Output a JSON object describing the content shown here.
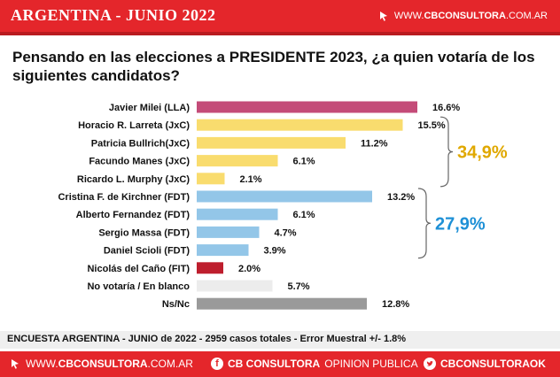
{
  "header": {
    "title": "ARGENTINA - JUNIO 2022",
    "site_prefix": "WWW.",
    "site_main": "CBCONSULTORA",
    "site_suffix": ".COM.AR"
  },
  "question": "Pensando en las elecciones a PRESIDENTE 2023, ¿a quien votaría de los siguientes candidatos?",
  "chart_data": {
    "type": "bar",
    "orientation": "horizontal",
    "categories": [
      "Javier Milei (LLA)",
      "Horacio R. Larreta (JxC)",
      "Patricia Bullrich(JxC)",
      "Facundo Manes (JxC)",
      "Ricardo L. Murphy (JxC)",
      "Cristina F. de Kirchner (FDT)",
      "Alberto Fernandez (FDT)",
      "Sergio Massa (FDT)",
      "Daniel Scioli (FDT)",
      "Nicolás del Caño (FIT)",
      "No votaría / En blanco",
      "Ns/Nc"
    ],
    "values": [
      16.6,
      15.5,
      11.2,
      6.1,
      2.1,
      13.2,
      6.1,
      4.7,
      3.9,
      2.0,
      5.7,
      12.8
    ],
    "value_labels": [
      "16.6%",
      "15.5%",
      "11.2%",
      "6.1%",
      "2.1%",
      "13.2%",
      "6.1%",
      "4.7%",
      "3.9%",
      "2.0%",
      "5.7%",
      "12.8%"
    ],
    "colors": [
      "#c44b78",
      "#f9dc6e",
      "#f9dc6e",
      "#f9dc6e",
      "#f9dc6e",
      "#93c6e8",
      "#93c6e8",
      "#93c6e8",
      "#93c6e8",
      "#be1e2d",
      "#ececec",
      "#9a9a9a"
    ],
    "xlim": [
      0,
      18
    ],
    "groups": [
      {
        "label": "34,9%",
        "from": 1,
        "to": 4,
        "color": "#e0a800"
      },
      {
        "label": "27,9%",
        "from": 5,
        "to": 8,
        "color": "#1e90d6"
      }
    ]
  },
  "footnote": "ENCUESTA ARGENTINA - JUNIO de 2022 -  2959 casos totales - Error Muestral +/- 1.8%",
  "footer": {
    "web_prefix": "WWW.",
    "web_main": "CBCONSULTORA",
    "web_suffix": ".COM.AR",
    "brand_main": "CB CONSULTORA",
    "brand_sub": "OPINION PUBLICA",
    "twitter": "CBCONSULTORAOK",
    "icons": [
      "cursor-icon",
      "facebook-icon",
      "twitter-icon"
    ]
  }
}
